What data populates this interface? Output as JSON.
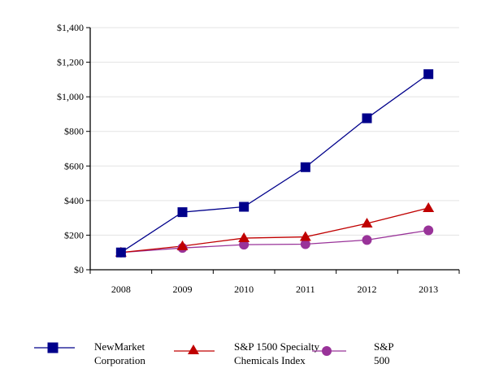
{
  "chart_data": {
    "type": "line",
    "title": "",
    "xlabel": "",
    "ylabel": "",
    "categories": [
      "2008",
      "2009",
      "2010",
      "2011",
      "2012",
      "2013"
    ],
    "y_ticks": [
      "$0",
      "$200",
      "$400",
      "$600",
      "$800",
      "$1,000",
      "$1,200",
      "$1,400"
    ],
    "ylim": [
      0,
      1400
    ],
    "grid": "horizontal",
    "legend_position": "bottom",
    "series": [
      {
        "name": "NewMarket Corporation",
        "label_lines": "NewMarket\nCorporation",
        "color": "#00008B",
        "marker": "square",
        "values": [
          100,
          333,
          364,
          593,
          876,
          1131
        ]
      },
      {
        "name": "S&P 1500 Specialty Chemicals Index",
        "label_lines": "S&P 1500 Specialty\nChemicals Index",
        "color": "#C00000",
        "marker": "triangle",
        "values": [
          100,
          137,
          183,
          190,
          268,
          357
        ]
      },
      {
        "name": "S&P 500",
        "label_lines": "S&P\n500",
        "color": "#993399",
        "marker": "circle",
        "values": [
          100,
          126,
          145,
          148,
          172,
          228
        ]
      }
    ]
  }
}
